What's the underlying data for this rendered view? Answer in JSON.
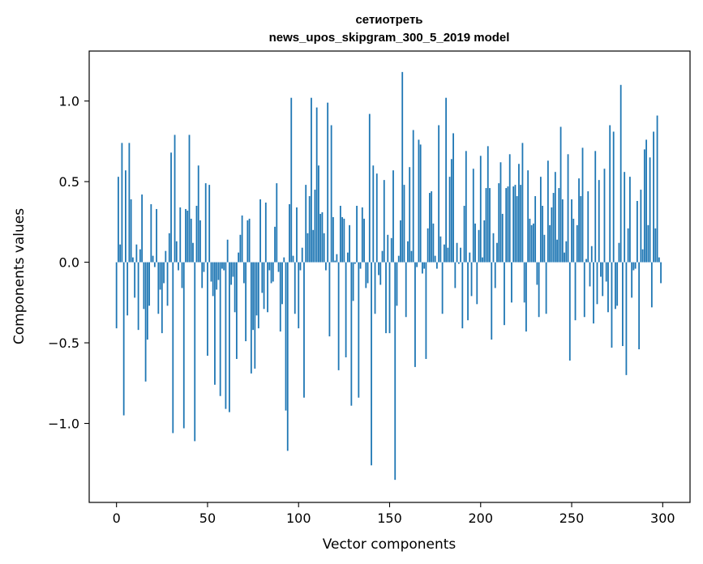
{
  "chart_data": {
    "type": "bar",
    "title_line1": "сетиотреть",
    "title_line2": "news_upos_skipgram_300_5_2019 model",
    "xlabel": "Vector components",
    "ylabel": "Components values",
    "xlim": [
      -15,
      315
    ],
    "ylim": [
      -1.49,
      1.31
    ],
    "xticks": [
      0,
      50,
      100,
      150,
      200,
      250,
      300
    ],
    "xtick_labels": [
      "0",
      "50",
      "100",
      "150",
      "200",
      "250",
      "300"
    ],
    "yticks": [
      -1.0,
      -0.5,
      0.0,
      0.5,
      1.0
    ],
    "ytick_labels": [
      "−1.0",
      "−0.5",
      "0.0",
      "0.5",
      "1.0"
    ],
    "bar_color": "#1f77b4",
    "values": [
      -0.41,
      0.53,
      0.11,
      0.74,
      -0.95,
      0.57,
      -0.33,
      0.74,
      0.39,
      0.03,
      -0.22,
      0.11,
      -0.42,
      0.08,
      0.42,
      -0.29,
      -0.74,
      -0.48,
      -0.27,
      0.36,
      0.04,
      -0.03,
      0.33,
      -0.32,
      -0.17,
      -0.44,
      -0.13,
      0.07,
      -0.27,
      0.18,
      0.68,
      -1.06,
      0.79,
      0.13,
      -0.05,
      0.34,
      -0.16,
      -1.03,
      0.33,
      0.32,
      0.79,
      0.27,
      0.12,
      -1.11,
      0.35,
      0.6,
      0.26,
      -0.16,
      -0.06,
      0.49,
      -0.58,
      0.48,
      -0.12,
      -0.21,
      -0.76,
      -0.17,
      -0.11,
      -0.83,
      -0.04,
      -0.05,
      -0.91,
      0.14,
      -0.93,
      -0.14,
      -0.09,
      -0.31,
      -0.6,
      0.06,
      0.17,
      0.29,
      -0.13,
      -0.49,
      0.26,
      0.27,
      -0.69,
      -0.42,
      -0.66,
      -0.33,
      -0.41,
      0.39,
      -0.19,
      -0.29,
      0.37,
      -0.31,
      -0.05,
      -0.13,
      -0.12,
      0.22,
      0.49,
      -0.06,
      -0.43,
      -0.26,
      0.03,
      -0.92,
      -1.17,
      0.36,
      1.02,
      0.04,
      -0.32,
      0.34,
      -0.41,
      -0.05,
      0.09,
      -0.84,
      0.48,
      0.18,
      0.41,
      1.02,
      0.2,
      0.45,
      0.96,
      0.6,
      0.3,
      0.31,
      0.18,
      -0.05,
      0.99,
      -0.46,
      0.85,
      0.28,
      0.01,
      0.05,
      -0.67,
      0.35,
      0.28,
      0.27,
      -0.59,
      0.06,
      0.23,
      -0.89,
      -0.24,
      -0.01,
      0.35,
      -0.84,
      -0.04,
      0.34,
      0.27,
      -0.16,
      -0.13,
      0.92,
      -1.26,
      0.6,
      -0.32,
      0.55,
      -0.08,
      -0.14,
      0.07,
      0.51,
      -0.44,
      0.17,
      -0.44,
      0.15,
      0.57,
      -1.35,
      -0.27,
      0.04,
      0.26,
      1.18,
      0.48,
      -0.34,
      0.13,
      0.59,
      0.07,
      0.82,
      -0.65,
      -0.03,
      0.76,
      0.73,
      -0.07,
      -0.04,
      -0.6,
      0.21,
      0.43,
      0.44,
      0.24,
      0.04,
      -0.04,
      0.85,
      0.16,
      -0.32,
      0.11,
      1.02,
      0.09,
      0.53,
      0.64,
      0.8,
      -0.16,
      0.12,
      -0.01,
      0.09,
      -0.41,
      0.35,
      0.69,
      -0.36,
      0.06,
      -0.21,
      0.58,
      0.24,
      -0.26,
      0.2,
      0.66,
      0.03,
      0.26,
      0.46,
      0.72,
      0.46,
      -0.48,
      0.18,
      -0.16,
      0.12,
      0.49,
      0.62,
      0.3,
      -0.39,
      0.46,
      0.47,
      0.67,
      -0.25,
      0.47,
      0.48,
      0.41,
      0.61,
      0.48,
      0.74,
      -0.25,
      -0.43,
      0.57,
      0.27,
      0.23,
      0.24,
      0.41,
      -0.14,
      -0.34,
      0.53,
      0.35,
      0.17,
      -0.32,
      0.63,
      0.23,
      0.34,
      0.43,
      0.56,
      0.14,
      0.46,
      0.84,
      0.39,
      0.06,
      0.13,
      0.67,
      -0.61,
      0.39,
      0.27,
      -0.36,
      0.23,
      0.52,
      0.41,
      0.71,
      -0.34,
      0.02,
      0.44,
      -0.15,
      0.1,
      -0.38,
      0.69,
      -0.26,
      0.51,
      -0.09,
      -0.21,
      0.58,
      -0.12,
      -0.31,
      0.85,
      -0.53,
      0.81,
      -0.29,
      -0.27,
      0.12,
      1.1,
      -0.52,
      0.56,
      -0.7,
      0.21,
      0.53,
      -0.22,
      -0.05,
      -0.04,
      0.38,
      -0.54,
      0.45,
      0.08,
      0.7,
      0.76,
      0.23,
      0.65,
      -0.28,
      0.81,
      0.21,
      0.91,
      0.03,
      -0.13
    ]
  }
}
